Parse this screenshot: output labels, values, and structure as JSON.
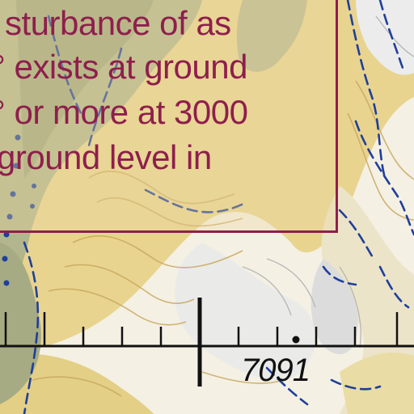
{
  "notice": {
    "lines": [
      "sturbance of as",
      "° exists at ground",
      "° or more at 3000",
      "ground level in"
    ]
  },
  "elevation_label": "7091",
  "colors": {
    "notice_text": "#8e1f4c",
    "notice_border": "#8e1f4c",
    "contour_blue": "#1f3f9a",
    "terrain_tan": "#e6cf86",
    "vegetation_green": "#a8ad86",
    "scale_bar": "#111111"
  }
}
